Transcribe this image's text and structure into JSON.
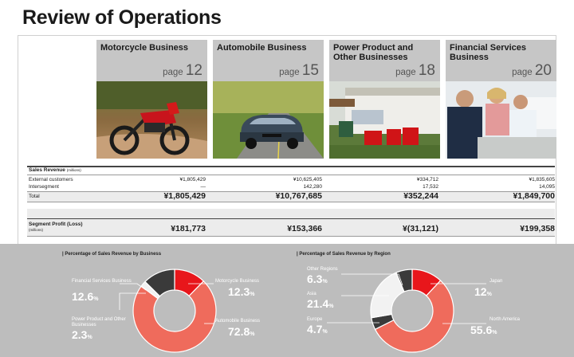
{
  "page_title": "Review of Operations",
  "businesses": [
    {
      "name": "Motorcycle Business",
      "page_prefix": "page",
      "page_num": "12"
    },
    {
      "name": "Automobile Business",
      "page_prefix": "page",
      "page_num": "15"
    },
    {
      "name": "Power Product and Other Businesses",
      "page_prefix": "page",
      "page_num": "18"
    },
    {
      "name": "Financial Services Business",
      "page_prefix": "page",
      "page_num": "20"
    }
  ],
  "table": {
    "sales_revenue_label": "Sales Revenue",
    "sales_revenue_unit": "(millions)",
    "rows": {
      "external_label": "External customers",
      "intersegment_label": "Intersegment",
      "total_label": "Total"
    },
    "external": [
      "¥1,805,429",
      "¥10,625,405",
      "¥334,712",
      "¥1,835,605"
    ],
    "intersegment": [
      "—",
      "142,280",
      "17,532",
      "14,095"
    ],
    "total": [
      "¥1,805,429",
      "¥10,767,685",
      "¥352,244",
      "¥1,849,700"
    ],
    "segment_profit_label": "Segment Profit (Loss)",
    "segment_profit_unit": "(millions)",
    "segment_profit": [
      "¥181,773",
      "¥153,366",
      "¥(31,121)",
      "¥199,358"
    ]
  },
  "colors": {
    "red": "#e8161b",
    "salmon": "#ef6b5c",
    "dark": "#3a3a3a",
    "light": "#f2f2f2",
    "header_gray": "#c6c6c6"
  },
  "chart_data": [
    {
      "type": "pie",
      "title": "Percentage of Sales Revenue by Business",
      "series": [
        {
          "name": "Motorcycle Business",
          "value": 12.3
        },
        {
          "name": "Automobile Business",
          "value": 72.8
        },
        {
          "name": "Power Product and Other Businesses",
          "value": 2.3
        },
        {
          "name": "Financial Services Business",
          "value": 12.6
        }
      ],
      "unit": "%"
    },
    {
      "type": "pie",
      "title": "Percentage of Sales Revenue by Region",
      "series": [
        {
          "name": "Japan",
          "value": 12.0
        },
        {
          "name": "North America",
          "value": 55.6
        },
        {
          "name": "Europe",
          "value": 4.7
        },
        {
          "name": "Asia",
          "value": 21.4
        },
        {
          "name": "Other Regions",
          "value": 6.3
        }
      ],
      "unit": "%"
    }
  ]
}
